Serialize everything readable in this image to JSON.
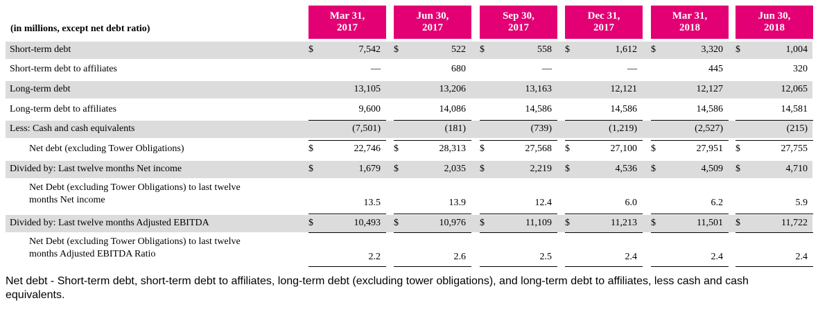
{
  "table": {
    "units_label": "(in millions, except net debt ratio)",
    "columns": [
      [
        "Mar 31,",
        "2017"
      ],
      [
        "Jun 30,",
        "2017"
      ],
      [
        "Sep 30,",
        "2017"
      ],
      [
        "Dec 31,",
        "2017"
      ],
      [
        "Mar 31,",
        "2018"
      ],
      [
        "Jun 30,",
        "2018"
      ]
    ],
    "currency_symbol": "$",
    "rows": [
      {
        "label": [
          "Short-term debt"
        ],
        "indent": false,
        "shaded": true,
        "dollar": true,
        "values": [
          "7,542",
          "522",
          "558",
          "1,612",
          "3,320",
          "1,004"
        ]
      },
      {
        "label": [
          "Short-term debt to affiliates"
        ],
        "indent": false,
        "shaded": false,
        "dollar": false,
        "values": [
          "—",
          "680",
          "—",
          "—",
          "445",
          "320"
        ]
      },
      {
        "label": [
          "Long-term debt"
        ],
        "indent": false,
        "shaded": true,
        "dollar": false,
        "values": [
          "13,105",
          "13,206",
          "13,163",
          "12,121",
          "12,127",
          "12,065"
        ]
      },
      {
        "label": [
          "Long-term debt to affiliates"
        ],
        "indent": false,
        "shaded": false,
        "dollar": false,
        "values": [
          "9,600",
          "14,086",
          "14,586",
          "14,586",
          "14,586",
          "14,581"
        ]
      },
      {
        "label": [
          "Less: Cash and cash equivalents"
        ],
        "indent": false,
        "shaded": true,
        "dollar": false,
        "values": [
          "(7,501)",
          "(181)",
          "(739)",
          "(1,219)",
          "(2,527)",
          "(215)"
        ]
      },
      {
        "label": [
          "Net debt (excluding Tower Obligations)"
        ],
        "indent": true,
        "shaded": false,
        "dollar": true,
        "values": [
          "22,746",
          "28,313",
          "27,568",
          "27,100",
          "27,951",
          "27,755"
        ]
      },
      {
        "label": [
          "Divided by: Last twelve months Net income"
        ],
        "indent": false,
        "shaded": true,
        "dollar": true,
        "values": [
          "1,679",
          "2,035",
          "2,219",
          "4,536",
          "4,509",
          "4,710"
        ]
      },
      {
        "label": [
          "Net Debt (excluding Tower Obligations) to last twelve",
          "months Net income"
        ],
        "indent": true,
        "shaded": false,
        "dollar": false,
        "values": [
          "13.5",
          "13.9",
          "12.4",
          "6.0",
          "6.2",
          "5.9"
        ]
      },
      {
        "label": [
          "Divided by: Last twelve months Adjusted EBITDA"
        ],
        "indent": false,
        "shaded": true,
        "dollar": true,
        "values": [
          "10,493",
          "10,976",
          "11,109",
          "11,213",
          "11,501",
          "11,722"
        ]
      },
      {
        "label": [
          "Net Debt (excluding Tower Obligations) to last twelve",
          "months Adjusted EBITDA Ratio"
        ],
        "indent": true,
        "shaded": false,
        "dollar": false,
        "values": [
          "2.2",
          "2.6",
          "2.5",
          "2.4",
          "2.4",
          "2.4"
        ]
      }
    ]
  },
  "footnote": "Net debt - Short-term debt, short-term debt to affiliates, long-term debt (excluding tower obligations), and long-term debt to affiliates, less cash and cash equivalents.",
  "colors": {
    "header_bg": "#e20074",
    "row_shade": "#dcdcdc"
  }
}
